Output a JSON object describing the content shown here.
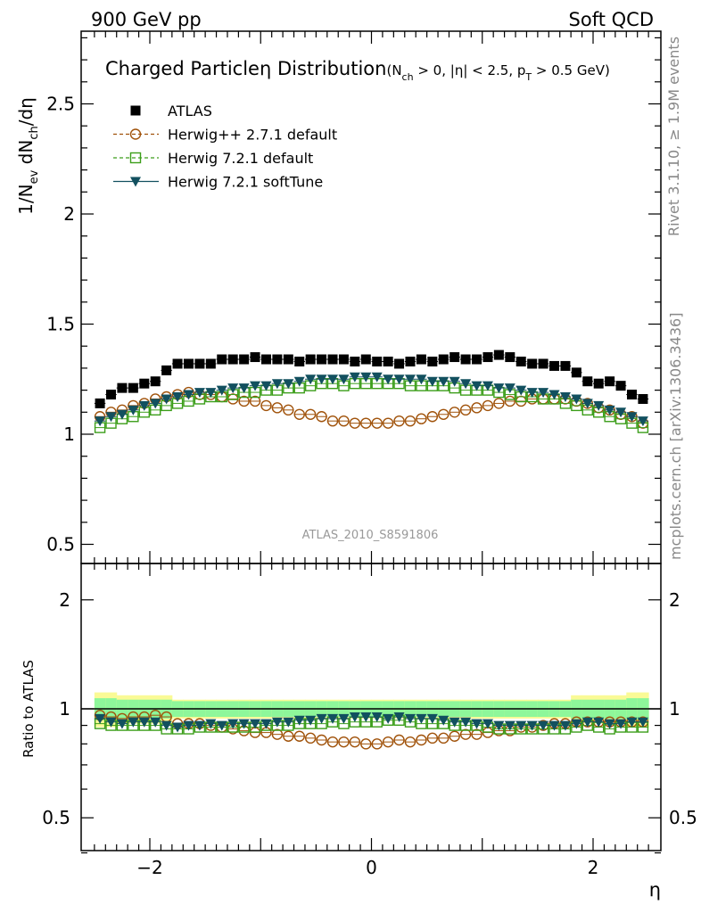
{
  "header": {
    "left": "900 GeV pp",
    "right": "Soft QCD"
  },
  "title": {
    "main": "Charged Particle",
    "eta": "η",
    "dist": " Distribution",
    "cuts": "(N",
    "cuts_sub": "ch",
    "cuts_rest": " > 0, |η| < 2.5, p",
    "cuts_sub2": "T",
    "cuts_end": " > 0.5 GeV)"
  },
  "side": {
    "top": "Rivet 3.1.10, ≥ 1.9M events",
    "bottom": "mcplots.cern.ch [arXiv:1306.3436]"
  },
  "analysis_id": "ATLAS_2010_S8591806",
  "ylabel_main": {
    "a": "1/N",
    "a_sub": "ev",
    "b": " dN",
    "b_sub": "ch",
    "c": "/dη"
  },
  "ylabel_ratio": "Ratio to ATLAS",
  "xlabel": "η",
  "colors": {
    "atlas": "#000000",
    "hw271": "#a0520a",
    "hw721": "#3c9e1a",
    "soft": "#12505f",
    "band_yellow": "#fafa96",
    "band_green": "#8ef79a"
  },
  "chart_data": [
    {
      "type": "scatter",
      "panel": "main",
      "xlim": [
        -2.6,
        2.6
      ],
      "ylim": [
        0.4,
        2.8
      ],
      "yticks": [
        "0.5",
        "1",
        "1.5",
        "2",
        "2.5"
      ],
      "x": [
        -2.45,
        -2.35,
        -2.25,
        -2.15,
        -2.05,
        -1.95,
        -1.85,
        -1.75,
        -1.65,
        -1.55,
        -1.45,
        -1.35,
        -1.25,
        -1.15,
        -1.05,
        -0.95,
        -0.85,
        -0.75,
        -0.65,
        -0.55,
        -0.45,
        -0.35,
        -0.25,
        -0.15,
        -0.05,
        0.05,
        0.15,
        0.25,
        0.35,
        0.45,
        0.55,
        0.65,
        0.75,
        0.85,
        0.95,
        1.05,
        1.15,
        1.25,
        1.35,
        1.45,
        1.55,
        1.65,
        1.75,
        1.85,
        1.95,
        2.05,
        2.15,
        2.25,
        2.35,
        2.45
      ],
      "series": [
        {
          "name": "ATLAS",
          "marker": "square",
          "values": [
            1.14,
            1.18,
            1.21,
            1.21,
            1.23,
            1.24,
            1.29,
            1.32,
            1.32,
            1.32,
            1.32,
            1.34,
            1.34,
            1.34,
            1.35,
            1.34,
            1.34,
            1.34,
            1.33,
            1.34,
            1.34,
            1.34,
            1.34,
            1.33,
            1.34,
            1.33,
            1.33,
            1.32,
            1.33,
            1.34,
            1.33,
            1.34,
            1.35,
            1.34,
            1.34,
            1.35,
            1.36,
            1.35,
            1.33,
            1.32,
            1.32,
            1.31,
            1.31,
            1.28,
            1.24,
            1.23,
            1.24,
            1.22,
            1.18,
            1.16
          ]
        },
        {
          "name": "Herwig++ 2.7.1 default",
          "marker": "open-circle",
          "values": [
            1.08,
            1.1,
            1.11,
            1.13,
            1.14,
            1.16,
            1.17,
            1.18,
            1.19,
            1.18,
            1.18,
            1.17,
            1.16,
            1.15,
            1.15,
            1.13,
            1.12,
            1.11,
            1.09,
            1.09,
            1.08,
            1.06,
            1.06,
            1.05,
            1.05,
            1.05,
            1.05,
            1.06,
            1.06,
            1.07,
            1.08,
            1.09,
            1.1,
            1.11,
            1.12,
            1.13,
            1.14,
            1.15,
            1.15,
            1.16,
            1.16,
            1.16,
            1.16,
            1.15,
            1.14,
            1.12,
            1.11,
            1.09,
            1.08,
            1.05
          ]
        },
        {
          "name": "Herwig 7.2.1 default",
          "marker": "open-square",
          "values": [
            1.03,
            1.05,
            1.07,
            1.08,
            1.1,
            1.11,
            1.13,
            1.14,
            1.15,
            1.16,
            1.17,
            1.17,
            1.18,
            1.19,
            1.19,
            1.2,
            1.2,
            1.21,
            1.21,
            1.22,
            1.23,
            1.23,
            1.22,
            1.23,
            1.23,
            1.23,
            1.23,
            1.23,
            1.22,
            1.22,
            1.22,
            1.22,
            1.21,
            1.2,
            1.2,
            1.2,
            1.19,
            1.18,
            1.17,
            1.17,
            1.16,
            1.16,
            1.14,
            1.13,
            1.11,
            1.1,
            1.08,
            1.07,
            1.05,
            1.03
          ]
        },
        {
          "name": "Herwig 7.2.1 softTune",
          "marker": "filled-triangle-down",
          "values": [
            1.06,
            1.08,
            1.09,
            1.11,
            1.13,
            1.14,
            1.16,
            1.17,
            1.18,
            1.19,
            1.19,
            1.2,
            1.21,
            1.21,
            1.22,
            1.22,
            1.23,
            1.23,
            1.24,
            1.25,
            1.25,
            1.25,
            1.25,
            1.26,
            1.26,
            1.26,
            1.25,
            1.25,
            1.25,
            1.25,
            1.24,
            1.24,
            1.24,
            1.23,
            1.22,
            1.22,
            1.21,
            1.21,
            1.2,
            1.19,
            1.19,
            1.18,
            1.17,
            1.16,
            1.14,
            1.13,
            1.11,
            1.1,
            1.08,
            1.06
          ]
        }
      ]
    },
    {
      "type": "scatter",
      "panel": "ratio",
      "ylabel": "Ratio to ATLAS",
      "xlabel": "η",
      "xlim": [
        -2.6,
        2.6
      ],
      "ylim": [
        0.35,
        2.3
      ],
      "xticks": [
        "−2",
        "0",
        "2"
      ],
      "yticks": [
        "0.5",
        "1",
        "2"
      ],
      "band_green_halfwidth": [
        0.07,
        0.07,
        0.06,
        0.06,
        0.06,
        0.06,
        0.06,
        0.05,
        0.05,
        0.05,
        0.05,
        0.05,
        0.05,
        0.05,
        0.05,
        0.05,
        0.05,
        0.05,
        0.05,
        0.05,
        0.05,
        0.05,
        0.05,
        0.05,
        0.05,
        0.05,
        0.05,
        0.05,
        0.05,
        0.05,
        0.05,
        0.05,
        0.05,
        0.05,
        0.05,
        0.05,
        0.05,
        0.05,
        0.05,
        0.05,
        0.05,
        0.05,
        0.05,
        0.06,
        0.06,
        0.06,
        0.06,
        0.06,
        0.07,
        0.07
      ],
      "band_yellow_halfwidth": [
        0.11,
        0.11,
        0.09,
        0.09,
        0.09,
        0.09,
        0.09,
        0.06,
        0.06,
        0.06,
        0.06,
        0.06,
        0.06,
        0.06,
        0.06,
        0.06,
        0.06,
        0.06,
        0.06,
        0.06,
        0.06,
        0.06,
        0.06,
        0.06,
        0.06,
        0.06,
        0.06,
        0.06,
        0.06,
        0.06,
        0.06,
        0.06,
        0.06,
        0.06,
        0.06,
        0.06,
        0.06,
        0.06,
        0.06,
        0.06,
        0.06,
        0.06,
        0.06,
        0.09,
        0.09,
        0.09,
        0.09,
        0.09,
        0.11,
        0.11
      ],
      "series": [
        {
          "name": "Herwig++ 2.7.1 default",
          "marker": "open-circle",
          "values": [
            0.96,
            0.95,
            0.94,
            0.95,
            0.95,
            0.96,
            0.95,
            0.91,
            0.91,
            0.91,
            0.9,
            0.89,
            0.88,
            0.87,
            0.86,
            0.86,
            0.85,
            0.84,
            0.84,
            0.83,
            0.82,
            0.81,
            0.81,
            0.81,
            0.8,
            0.8,
            0.81,
            0.82,
            0.81,
            0.82,
            0.83,
            0.83,
            0.84,
            0.85,
            0.85,
            0.86,
            0.87,
            0.87,
            0.89,
            0.89,
            0.9,
            0.91,
            0.91,
            0.92,
            0.92,
            0.92,
            0.92,
            0.92,
            0.92,
            0.92
          ]
        },
        {
          "name": "Herwig 7.2.1 default",
          "marker": "open-square",
          "values": [
            0.91,
            0.9,
            0.9,
            0.9,
            0.9,
            0.9,
            0.88,
            0.88,
            0.88,
            0.89,
            0.89,
            0.89,
            0.89,
            0.89,
            0.89,
            0.9,
            0.9,
            0.9,
            0.91,
            0.91,
            0.91,
            0.92,
            0.91,
            0.92,
            0.92,
            0.92,
            0.93,
            0.93,
            0.92,
            0.91,
            0.91,
            0.91,
            0.9,
            0.9,
            0.9,
            0.89,
            0.88,
            0.88,
            0.88,
            0.88,
            0.88,
            0.88,
            0.88,
            0.89,
            0.9,
            0.89,
            0.88,
            0.89,
            0.89,
            0.89
          ]
        },
        {
          "name": "Herwig 7.2.1 softTune",
          "marker": "filled-triangle-down",
          "values": [
            0.94,
            0.92,
            0.91,
            0.92,
            0.92,
            0.92,
            0.9,
            0.89,
            0.9,
            0.9,
            0.91,
            0.9,
            0.91,
            0.91,
            0.91,
            0.91,
            0.92,
            0.92,
            0.93,
            0.93,
            0.94,
            0.94,
            0.94,
            0.95,
            0.95,
            0.95,
            0.94,
            0.95,
            0.94,
            0.94,
            0.94,
            0.93,
            0.92,
            0.92,
            0.91,
            0.91,
            0.9,
            0.9,
            0.9,
            0.9,
            0.9,
            0.9,
            0.9,
            0.91,
            0.92,
            0.92,
            0.91,
            0.91,
            0.92,
            0.92
          ]
        }
      ]
    }
  ]
}
